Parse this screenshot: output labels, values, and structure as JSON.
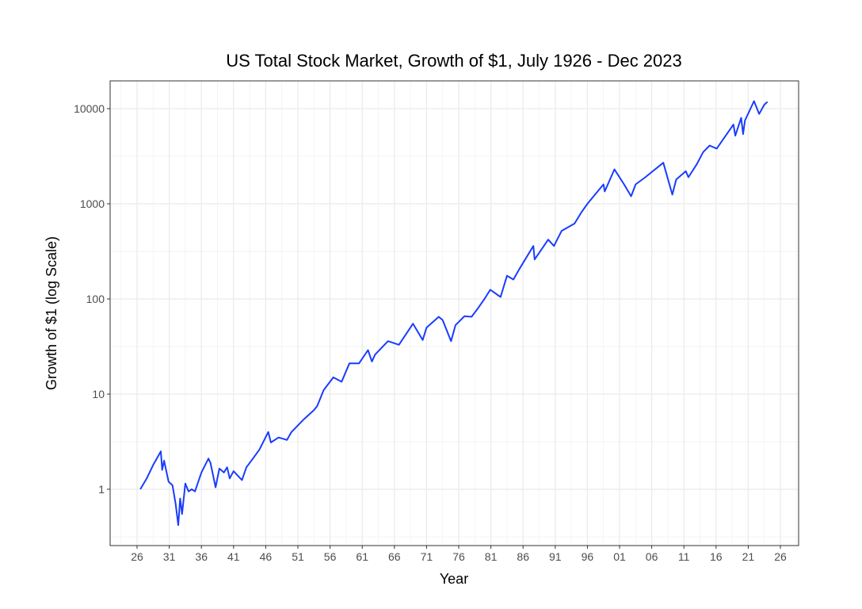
{
  "chart_data": {
    "type": "line",
    "title": "US Total Stock Market, Growth of $1, July 1926 - Dec 2023",
    "xlabel": "Year",
    "ylabel": "Growth of $1 (log Scale)",
    "y_scale": "log10",
    "xlim": [
      1922,
      2029
    ],
    "ylim": [
      0.25,
      18000
    ],
    "grid": true,
    "line_color": "#1a3cff",
    "x_ticks": [
      1926,
      1931,
      1936,
      1941,
      1946,
      1951,
      1956,
      1961,
      1966,
      1971,
      1976,
      1981,
      1986,
      1991,
      1996,
      2001,
      2006,
      2011,
      2016,
      2021,
      2026
    ],
    "x_tick_labels": [
      "26",
      "31",
      "36",
      "41",
      "46",
      "51",
      "56",
      "61",
      "66",
      "71",
      "76",
      "81",
      "86",
      "91",
      "96",
      "01",
      "06",
      "11",
      "16",
      "21",
      "26"
    ],
    "y_ticks": [
      1,
      10,
      100,
      1000,
      10000
    ],
    "y_tick_labels": [
      "1",
      "10",
      "100",
      "1000",
      "10000"
    ],
    "series": [
      {
        "name": "US Total Stock Market",
        "x": [
          1926.5,
          1927.5,
          1928.5,
          1929.7,
          1929.9,
          1930.2,
          1930.9,
          1931.5,
          1932.0,
          1932.4,
          1932.7,
          1933.0,
          1933.5,
          1934.0,
          1934.5,
          1935.0,
          1936.0,
          1937.1,
          1937.4,
          1938.2,
          1938.8,
          1939.5,
          1940.0,
          1940.4,
          1941.0,
          1942.3,
          1943.0,
          1944.0,
          1945.0,
          1946.4,
          1946.8,
          1948.0,
          1949.3,
          1950.0,
          1952.0,
          1953.5,
          1954.0,
          1955.0,
          1956.5,
          1957.8,
          1959.0,
          1960.5,
          1961.9,
          1962.5,
          1963.0,
          1965.0,
          1966.7,
          1968.9,
          1970.4,
          1971.0,
          1972.9,
          1973.5,
          1974.8,
          1975.5,
          1976.9,
          1978.0,
          1979.0,
          1980.0,
          1980.9,
          1982.5,
          1983.5,
          1984.5,
          1985.5,
          1987.6,
          1987.8,
          1989.9,
          1990.8,
          1992.0,
          1994.0,
          1995.0,
          1996.0,
          1998.5,
          1998.7,
          2000.2,
          2001.7,
          2002.8,
          2003.5,
          2005.0,
          2007.8,
          2009.2,
          2009.8,
          2011.3,
          2011.7,
          2013.0,
          2014.0,
          2015.0,
          2016.1,
          2018.7,
          2018.99,
          2019.9,
          2020.2,
          2020.5,
          2021.9,
          2022.7,
          2023.5,
          2023.99
        ],
        "y": [
          1.0,
          1.3,
          1.8,
          2.5,
          1.6,
          2.0,
          1.2,
          1.1,
          0.7,
          0.42,
          0.8,
          0.55,
          1.15,
          0.95,
          1.0,
          0.95,
          1.5,
          2.1,
          1.9,
          1.05,
          1.65,
          1.5,
          1.7,
          1.3,
          1.55,
          1.25,
          1.7,
          2.1,
          2.6,
          4.0,
          3.1,
          3.5,
          3.3,
          4.0,
          5.5,
          6.8,
          7.5,
          11,
          15,
          13.5,
          21,
          21,
          29,
          22,
          26,
          36,
          33,
          55,
          37,
          50,
          65,
          60,
          36,
          53,
          66,
          65,
          80,
          100,
          125,
          105,
          175,
          160,
          210,
          360,
          260,
          420,
          360,
          520,
          620,
          800,
          1000,
          1600,
          1350,
          2300,
          1600,
          1200,
          1600,
          1900,
          2700,
          1250,
          1800,
          2200,
          1900,
          2600,
          3500,
          4100,
          3800,
          6800,
          5200,
          8000,
          5400,
          7500,
          12000,
          8800,
          11000,
          11800
        ]
      }
    ]
  }
}
